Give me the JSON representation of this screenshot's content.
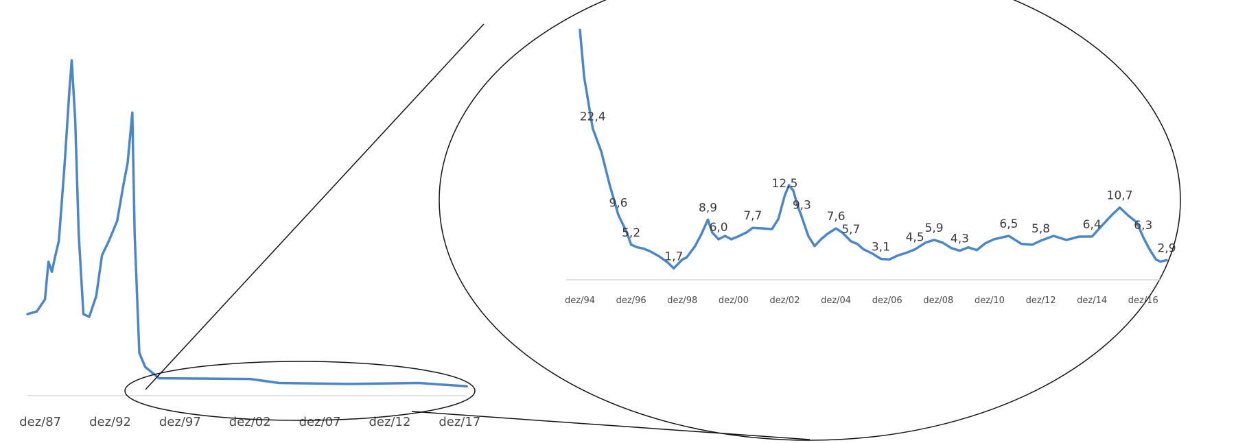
{
  "chart_data": [
    {
      "type": "line",
      "x_ticks": [
        "dez/87",
        "dez/92",
        "dez/97",
        "dez/02",
        "dez/07",
        "dez/12",
        "dez/17"
      ],
      "x_range": [
        "1987-01",
        "2018-06"
      ],
      "grid": false,
      "series": [
        {
          "color": "#4a86c8",
          "points": [
            [
              "1987-01",
              300
            ],
            [
              "1987-09",
              320
            ],
            [
              "1988-04",
              420
            ],
            [
              "1988-07",
              820
            ],
            [
              "1988-10",
              700
            ],
            [
              "1989-01",
              900
            ],
            [
              "1989-04",
              1100
            ],
            [
              "1989-09",
              2500
            ],
            [
              "1990-01",
              4300
            ],
            [
              "1990-03",
              5200
            ],
            [
              "1990-06",
              3500
            ],
            [
              "1990-09",
              1200
            ],
            [
              "1991-01",
              300
            ],
            [
              "1991-06",
              280
            ],
            [
              "1991-12",
              450
            ],
            [
              "1992-05",
              900
            ],
            [
              "1992-11",
              1100
            ],
            [
              "1993-06",
              1400
            ],
            [
              "1993-11",
              2000
            ],
            [
              "1994-03",
              2500
            ],
            [
              "1994-07",
              3700
            ],
            [
              "1994-09",
              1200
            ],
            [
              "1995-01",
              80
            ],
            [
              "1995-06",
              35
            ],
            [
              "1996-06",
              12
            ],
            [
              "2002-12",
              11
            ],
            [
              "2005-01",
              6
            ],
            [
              "2010-01",
              5
            ],
            [
              "2015-01",
              6
            ],
            [
              "2018-06",
              3
            ]
          ]
        }
      ]
    },
    {
      "type": "line",
      "x_ticks": [
        "dez/94",
        "dez/96",
        "dez/98",
        "dez/00",
        "dez/02",
        "dez/04",
        "dez/06",
        "dez/08",
        "dez/10",
        "dez/12",
        "dez/14",
        "dez/16"
      ],
      "x_range": [
        "1994-12",
        "2017-11"
      ],
      "ylim": [
        0,
        40
      ],
      "grid": false,
      "series": [
        {
          "color": "#4a86c8",
          "points": [
            [
              "1994-12",
              37.0
            ],
            [
              "1995-02",
              30.0
            ],
            [
              "1995-06",
              22.4
            ],
            [
              "1995-10",
              19.0
            ],
            [
              "1996-02",
              14.0
            ],
            [
              "1996-06",
              9.6
            ],
            [
              "1996-10",
              7.0
            ],
            [
              "1996-12",
              5.2
            ],
            [
              "1997-03",
              4.8
            ],
            [
              "1997-06",
              4.6
            ],
            [
              "1997-09",
              4.2
            ],
            [
              "1998-01",
              3.5
            ],
            [
              "1998-05",
              2.6
            ],
            [
              "1998-08",
              1.7
            ],
            [
              "1998-12",
              3.0
            ],
            [
              "1999-02",
              3.3
            ],
            [
              "1999-06",
              5.0
            ],
            [
              "1999-09",
              6.8
            ],
            [
              "1999-12",
              8.9
            ],
            [
              "2000-02",
              7.0
            ],
            [
              "2000-05",
              6.0
            ],
            [
              "2000-08",
              6.5
            ],
            [
              "2000-11",
              6.0
            ],
            [
              "2001-02",
              6.4
            ],
            [
              "2001-06",
              7.0
            ],
            [
              "2001-09",
              7.7
            ],
            [
              "2002-02",
              7.6
            ],
            [
              "2002-06",
              7.5
            ],
            [
              "2002-09",
              9.0
            ],
            [
              "2002-12",
              12.5
            ],
            [
              "2003-02",
              14.0
            ],
            [
              "2003-04",
              13.2
            ],
            [
              "2003-06",
              11.0
            ],
            [
              "2003-08",
              9.3
            ],
            [
              "2003-11",
              6.5
            ],
            [
              "2004-02",
              5.0
            ],
            [
              "2004-05",
              6.0
            ],
            [
              "2004-08",
              6.8
            ],
            [
              "2004-12",
              7.6
            ],
            [
              "2005-03",
              7.0
            ],
            [
              "2005-07",
              5.7
            ],
            [
              "2005-10",
              5.3
            ],
            [
              "2006-01",
              4.5
            ],
            [
              "2006-05",
              3.9
            ],
            [
              "2006-09",
              3.1
            ],
            [
              "2007-01",
              3.0
            ],
            [
              "2007-05",
              3.6
            ],
            [
              "2007-09",
              4.0
            ],
            [
              "2008-01",
              4.5
            ],
            [
              "2008-06",
              5.5
            ],
            [
              "2008-10",
              5.9
            ],
            [
              "2009-02",
              5.5
            ],
            [
              "2009-06",
              4.7
            ],
            [
              "2009-10",
              4.3
            ],
            [
              "2010-02",
              4.8
            ],
            [
              "2010-06",
              4.4
            ],
            [
              "2010-10",
              5.4
            ],
            [
              "2011-02",
              6.0
            ],
            [
              "2011-09",
              6.5
            ],
            [
              "2012-03",
              5.3
            ],
            [
              "2012-08",
              5.2
            ],
            [
              "2012-12",
              5.8
            ],
            [
              "2013-06",
              6.5
            ],
            [
              "2013-12",
              5.9
            ],
            [
              "2014-06",
              6.4
            ],
            [
              "2014-12",
              6.4
            ],
            [
              "2015-04",
              7.8
            ],
            [
              "2015-09",
              9.5
            ],
            [
              "2016-01",
              10.7
            ],
            [
              "2016-05",
              9.5
            ],
            [
              "2016-09",
              8.5
            ],
            [
              "2016-12",
              6.3
            ],
            [
              "2017-03",
              4.5
            ],
            [
              "2017-06",
              3.0
            ],
            [
              "2017-08",
              2.7
            ],
            [
              "2017-11",
              2.9
            ]
          ]
        }
      ],
      "data_labels": [
        {
          "x": "1995-06",
          "y": 22.4,
          "text": "22,4"
        },
        {
          "x": "1996-06",
          "y": 9.6,
          "text": "9,6"
        },
        {
          "x": "1996-12",
          "y": 5.2,
          "text": "5,2"
        },
        {
          "x": "1998-08",
          "y": 1.7,
          "text": "1,7"
        },
        {
          "x": "1999-12",
          "y": 8.9,
          "text": "8,9"
        },
        {
          "x": "2000-05",
          "y": 6.0,
          "text": "6,0"
        },
        {
          "x": "2001-09",
          "y": 7.7,
          "text": "7,7"
        },
        {
          "x": "2002-12",
          "y": 12.5,
          "text": "12,5"
        },
        {
          "x": "2003-08",
          "y": 9.3,
          "text": "9,3"
        },
        {
          "x": "2004-12",
          "y": 7.6,
          "text": "7,6"
        },
        {
          "x": "2005-07",
          "y": 5.7,
          "text": "5,7"
        },
        {
          "x": "2006-09",
          "y": 3.1,
          "text": "3,1"
        },
        {
          "x": "2008-01",
          "y": 4.5,
          "text": "4,5"
        },
        {
          "x": "2008-10",
          "y": 5.9,
          "text": "5,9"
        },
        {
          "x": "2009-10",
          "y": 4.3,
          "text": "4,3"
        },
        {
          "x": "2011-09",
          "y": 6.5,
          "text": "6,5"
        },
        {
          "x": "2012-12",
          "y": 5.8,
          "text": "5,8"
        },
        {
          "x": "2014-12",
          "y": 6.4,
          "text": "6,4"
        },
        {
          "x": "2016-01",
          "y": 10.7,
          "text": "10,7"
        },
        {
          "x": "2016-12",
          "y": 6.3,
          "text": "6,3"
        },
        {
          "x": "2017-11",
          "y": 2.9,
          "text": "2,9"
        }
      ]
    }
  ]
}
